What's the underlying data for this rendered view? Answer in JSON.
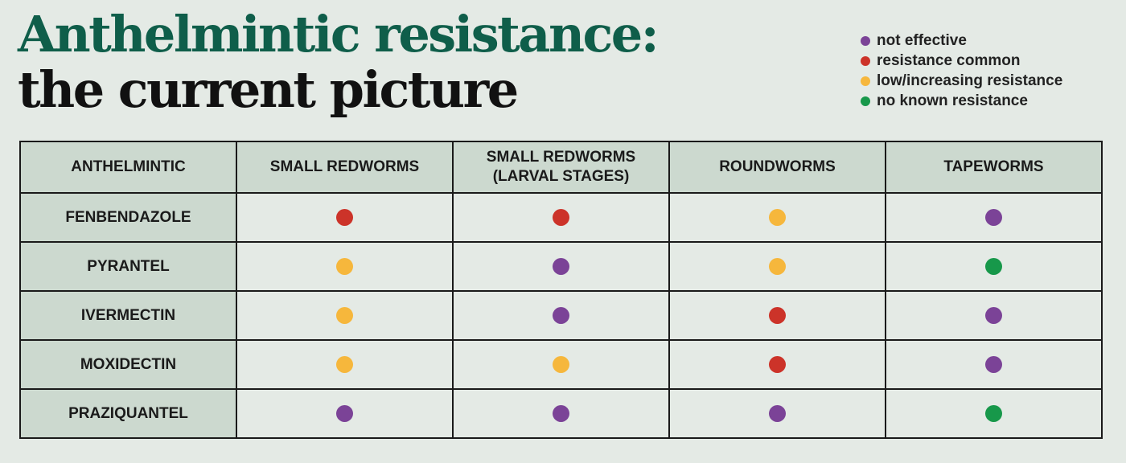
{
  "title": {
    "line1": "Anthelmintic resistance:",
    "line2": "the current picture"
  },
  "legend": [
    {
      "key": "not_effective",
      "label": "not effective",
      "color": "#7b4397"
    },
    {
      "key": "resistance_common",
      "label": "resistance common",
      "color": "#cc3329"
    },
    {
      "key": "low_increasing",
      "label": "low/increasing resistance",
      "color": "#f6b73c"
    },
    {
      "key": "no_known",
      "label": "no known resistance",
      "color": "#17984a"
    }
  ],
  "chart_data": {
    "type": "table",
    "columns": [
      "ANTHELMINTIC",
      "SMALL REDWORMS",
      "SMALL REDWORMS\n(LARVAL STAGES)",
      "ROUNDWORMS",
      "TAPEWORMS"
    ],
    "rows": [
      {
        "name": "FENBENDAZOLE",
        "values": [
          "resistance_common",
          "resistance_common",
          "low_increasing",
          "not_effective"
        ]
      },
      {
        "name": "PYRANTEL",
        "values": [
          "low_increasing",
          "not_effective",
          "low_increasing",
          "no_known"
        ]
      },
      {
        "name": "IVERMECTIN",
        "values": [
          "low_increasing",
          "not_effective",
          "resistance_common",
          "not_effective"
        ]
      },
      {
        "name": "MOXIDECTIN",
        "values": [
          "low_increasing",
          "low_increasing",
          "resistance_common",
          "not_effective"
        ]
      },
      {
        "name": "PRAZIQUANTEL",
        "values": [
          "not_effective",
          "not_effective",
          "not_effective",
          "no_known"
        ]
      }
    ]
  }
}
